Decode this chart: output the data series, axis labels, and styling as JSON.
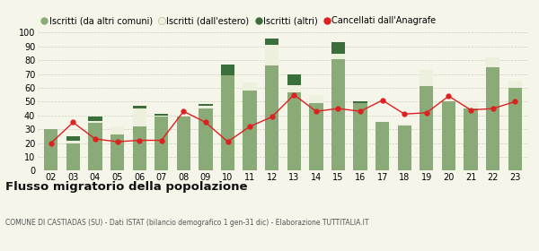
{
  "years": [
    "02",
    "03",
    "04",
    "05",
    "06",
    "07",
    "08",
    "09",
    "10",
    "11",
    "12",
    "13",
    "14",
    "15",
    "16",
    "17",
    "18",
    "19",
    "20",
    "21",
    "22",
    "23"
  ],
  "iscritti_altri_comuni": [
    30,
    20,
    35,
    26,
    32,
    39,
    39,
    45,
    69,
    58,
    76,
    57,
    49,
    81,
    49,
    35,
    33,
    61,
    50,
    45,
    75,
    60
  ],
  "iscritti_estero": [
    0,
    2,
    1,
    6,
    13,
    1,
    0,
    2,
    0,
    6,
    15,
    5,
    6,
    4,
    0,
    0,
    1,
    12,
    0,
    4,
    7,
    5
  ],
  "iscritti_altri": [
    0,
    3,
    3,
    0,
    2,
    1,
    0,
    1,
    8,
    0,
    5,
    8,
    0,
    8,
    1,
    0,
    0,
    0,
    0,
    0,
    0,
    0
  ],
  "cancellati": [
    20,
    35,
    23,
    21,
    22,
    22,
    43,
    35,
    21,
    32,
    39,
    55,
    43,
    45,
    43,
    51,
    41,
    42,
    54,
    44,
    45,
    50
  ],
  "color_altri_comuni": "#8aaa78",
  "color_estero": "#edf0dc",
  "color_altri": "#3a6e3a",
  "color_cancellati": "#dd2020",
  "ylim": [
    0,
    100
  ],
  "yticks": [
    0,
    10,
    20,
    30,
    40,
    50,
    60,
    70,
    80,
    90,
    100
  ],
  "title": "Flusso migratorio della popolazione",
  "subtitle": "COMUNE DI CASTIADAS (SU) - Dati ISTAT (bilancio demografico 1 gen-31 dic) - Elaborazione TUTTITALIA.IT",
  "legend_labels": [
    "Iscritti (da altri comuni)",
    "Iscritti (dall'estero)",
    "Iscritti (altri)",
    "Cancellati dall'Anagrafe"
  ],
  "bg_color": "#f5f5ea",
  "grid_color": "#d0d0c0"
}
